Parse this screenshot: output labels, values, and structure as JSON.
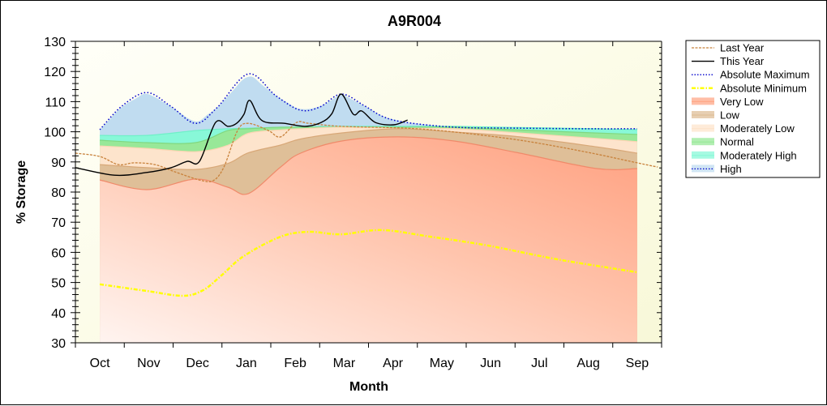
{
  "chart_data": {
    "type": "area",
    "title": "A9R004",
    "xlabel": "Month",
    "ylabel": "% Storage",
    "ylim": [
      30,
      130
    ],
    "yticks": [
      30,
      40,
      50,
      60,
      70,
      80,
      90,
      100,
      110,
      120,
      130
    ],
    "y_minor_step": 2,
    "x_unit": "months since start of October",
    "xlim": [
      0,
      12
    ],
    "categories": [
      "Oct",
      "Nov",
      "Dec",
      "Jan",
      "Feb",
      "Mar",
      "Apr",
      "May",
      "Jun",
      "Jul",
      "Aug",
      "Sep"
    ],
    "grid": false,
    "legend_position": "right",
    "colors": {
      "plot_background": "#fdfde8",
      "last_year": "#c8823c",
      "this_year": "#000000",
      "absolute_maximum": "#0000cc",
      "absolute_minimum": "#ffff00",
      "very_low": "#ffa888",
      "low": "#dfbf98",
      "moderately_low": "#fde4cc",
      "normal": "#98e898",
      "moderately_high": "#88f8d8",
      "high": "#c0dcf0"
    },
    "legend": [
      {
        "label": "Last Year",
        "kind": "line",
        "style": "dashed",
        "color_key": "last_year"
      },
      {
        "label": "This Year",
        "kind": "line",
        "style": "solid",
        "color_key": "this_year"
      },
      {
        "label": "Absolute Maximum",
        "kind": "line",
        "style": "dotted",
        "color_key": "absolute_maximum"
      },
      {
        "label": "Absolute Minimum",
        "kind": "line",
        "style": "dashdot",
        "color_key": "absolute_minimum"
      },
      {
        "label": "Very Low",
        "kind": "band",
        "color_key": "very_low"
      },
      {
        "label": "Low",
        "kind": "band",
        "color_key": "low"
      },
      {
        "label": "Moderately Low",
        "kind": "band",
        "color_key": "moderately_low"
      },
      {
        "label": "Normal",
        "kind": "band",
        "color_key": "normal"
      },
      {
        "label": "Moderately High",
        "kind": "band",
        "color_key": "moderately_high"
      },
      {
        "label": "High",
        "kind": "band",
        "color_key": "high"
      }
    ],
    "bands_x": [
      0.5,
      1.46,
      2.46,
      3.12,
      3.54,
      4.2,
      4.61,
      5.44,
      6.6,
      7.77,
      9.1,
      10.67,
      11.5
    ],
    "bands": [
      {
        "name": "Very Low",
        "color_key": "very_low",
        "upper": [
          84.0,
          80.8,
          84.3,
          81.6,
          79.5,
          88.3,
          92.9,
          96.9,
          98.3,
          96.9,
          92.9,
          87.8,
          87.8
        ]
      },
      {
        "name": "Low",
        "color_key": "low",
        "upper": [
          89.1,
          88.1,
          87.5,
          89.5,
          93.0,
          95.6,
          97.6,
          99.6,
          101.0,
          99.9,
          98.3,
          95.0,
          92.9
        ]
      },
      {
        "name": "Moderately Low",
        "color_key": "moderately_low",
        "upper": [
          95.3,
          94.5,
          93.4,
          95.5,
          99.5,
          100.6,
          101.0,
          101.5,
          101.2,
          101.0,
          99.6,
          97.8,
          96.7
        ]
      },
      {
        "name": "Normal",
        "color_key": "normal",
        "upper": [
          97.2,
          96.4,
          96.4,
          100.4,
          101.0,
          101.5,
          101.5,
          101.5,
          101.5,
          101.5,
          100.6,
          99.6,
          99.1
        ]
      },
      {
        "name": "Moderately High",
        "color_key": "moderately_high",
        "upper": [
          98.8,
          98.8,
          100.4,
          101.0,
          101.2,
          101.5,
          101.6,
          101.8,
          101.8,
          101.8,
          101.4,
          101.0,
          100.7
        ]
      },
      {
        "name": "High",
        "color_key": "high",
        "upper_series": "absolute_maximum"
      }
    ],
    "series": [
      {
        "name": "Absolute Maximum",
        "color_key": "absolute_maximum",
        "x": [
          0.5,
          0.95,
          1.46,
          1.95,
          2.46,
          2.9,
          3.54,
          4.1,
          4.6,
          5.0,
          5.44,
          5.9,
          6.3,
          6.77,
          7.77,
          9.0,
          10.5,
          11.5
        ],
        "y": [
          100.7,
          108.5,
          113.0,
          108.5,
          102.8,
          108.0,
          119.2,
          112.0,
          107.2,
          108.2,
          112.5,
          108.8,
          105.0,
          103.1,
          101.5,
          101.2,
          101.0,
          101.0
        ]
      },
      {
        "name": "Absolute Minimum",
        "color_key": "absolute_minimum",
        "x": [
          0.5,
          1.46,
          2.2,
          2.62,
          3.0,
          3.45,
          4.2,
          4.78,
          5.44,
          6.27,
          7.27,
          8.43,
          9.76,
          10.76,
          11.5
        ],
        "y": [
          49.4,
          47.2,
          45.6,
          47.5,
          52.5,
          58.8,
          65.2,
          66.8,
          66.0,
          67.4,
          65.2,
          62.3,
          58.0,
          55.3,
          53.4
        ]
      },
      {
        "name": "Last Year",
        "color_key": "last_year",
        "x": [
          0.0,
          0.5,
          0.88,
          1.21,
          1.63,
          2.04,
          2.54,
          2.82,
          3.04,
          3.32,
          3.54,
          3.95,
          4.2,
          4.53,
          4.78,
          5.44,
          6.77,
          7.77,
          9.1,
          10.42,
          11.5,
          11.92
        ],
        "y": [
          92.9,
          91.8,
          89.1,
          89.7,
          89.1,
          86.7,
          84.0,
          83.8,
          88.3,
          100.4,
          102.8,
          100.4,
          98.3,
          103.1,
          102.8,
          101.8,
          101.2,
          99.9,
          97.2,
          93.4,
          89.7,
          88.3
        ]
      },
      {
        "name": "This Year",
        "color_key": "this_year",
        "x": [
          0.0,
          0.8,
          1.46,
          1.96,
          2.29,
          2.54,
          2.87,
          3.12,
          3.3,
          3.45,
          3.57,
          3.82,
          4.28,
          4.7,
          5.03,
          5.25,
          5.44,
          5.69,
          5.86,
          6.14,
          6.52,
          6.8
        ],
        "y": [
          88.1,
          85.6,
          86.5,
          88.1,
          90.2,
          90.2,
          103.1,
          101.8,
          102.8,
          105.8,
          110.4,
          103.7,
          102.8,
          101.8,
          103.1,
          106.0,
          112.5,
          105.8,
          106.9,
          103.1,
          102.3,
          103.9
        ]
      }
    ]
  }
}
